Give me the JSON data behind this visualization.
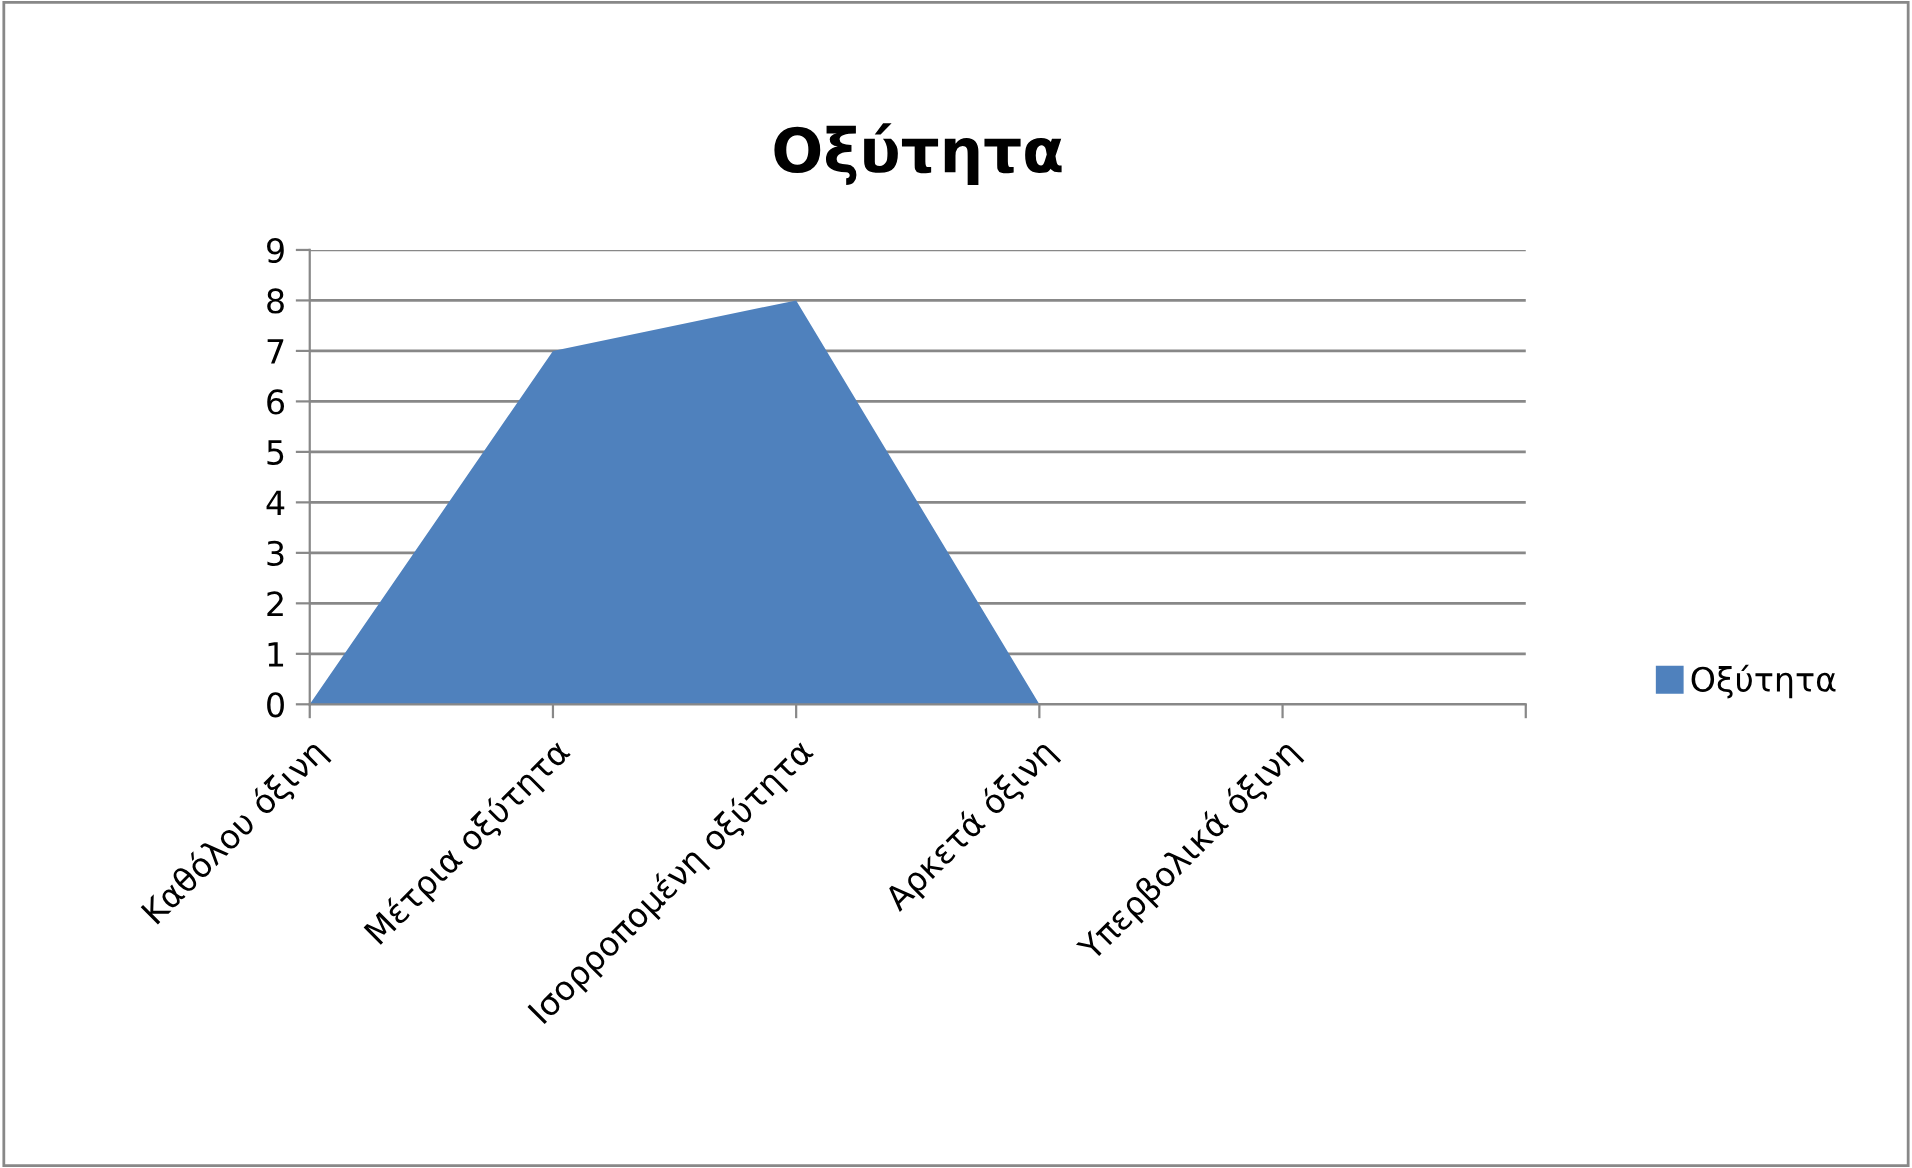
{
  "chart_data": {
    "type": "area",
    "title": "Οξύτητα",
    "categories": [
      "Καθόλου όξινη",
      "Μέτρια οξύτητα",
      "Ισορροπομένη οξύτητα",
      "Αρκετά όξινη",
      "Υπερβολικά όξινη"
    ],
    "series": [
      {
        "name": "Οξύτητα",
        "color": "#4f81bd",
        "values": [
          0,
          7,
          8,
          0,
          0
        ]
      }
    ],
    "ylim": [
      0,
      9
    ],
    "yticks": [
      0,
      1,
      2,
      3,
      4,
      5,
      6,
      7,
      8,
      9
    ],
    "grid": "y",
    "legend": "right"
  }
}
